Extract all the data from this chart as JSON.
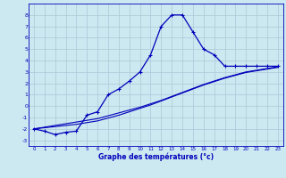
{
  "x": [
    0,
    1,
    2,
    3,
    4,
    5,
    6,
    7,
    8,
    9,
    10,
    11,
    12,
    13,
    14,
    15,
    16,
    17,
    18,
    19,
    20,
    21,
    22,
    23
  ],
  "temp_main": [
    -2.0,
    -2.2,
    -2.5,
    -2.3,
    -2.2,
    -0.8,
    -0.5,
    1.0,
    1.5,
    2.2,
    3.0,
    4.5,
    7.0,
    8.0,
    8.0,
    6.5,
    5.0,
    4.5,
    3.5,
    3.5,
    3.5,
    3.5,
    3.5,
    3.5
  ],
  "temp_line1": [
    -2.0,
    -1.85,
    -1.7,
    -1.55,
    -1.4,
    -1.25,
    -1.1,
    -0.85,
    -0.6,
    -0.35,
    -0.1,
    0.2,
    0.5,
    0.85,
    1.2,
    1.55,
    1.9,
    2.2,
    2.5,
    2.75,
    3.0,
    3.15,
    3.3,
    3.45
  ],
  "temp_line2": [
    -2.0,
    -1.9,
    -1.8,
    -1.7,
    -1.6,
    -1.45,
    -1.3,
    -1.05,
    -0.8,
    -0.5,
    -0.2,
    0.1,
    0.45,
    0.8,
    1.15,
    1.5,
    1.85,
    2.15,
    2.45,
    2.7,
    2.95,
    3.1,
    3.25,
    3.4
  ],
  "line_color": "#0000bb",
  "bg_color": "#cce8f0",
  "grid_color": "#aac8d8",
  "xlabel": "Graphe des températures (°c)",
  "ylim": [
    -3.5,
    9.0
  ],
  "xlim": [
    -0.5,
    23.5
  ],
  "yticks": [
    -3,
    -2,
    -1,
    0,
    1,
    2,
    3,
    4,
    5,
    6,
    7,
    8
  ],
  "xticks": [
    0,
    1,
    2,
    3,
    4,
    5,
    6,
    7,
    8,
    9,
    10,
    11,
    12,
    13,
    14,
    15,
    16,
    17,
    18,
    19,
    20,
    21,
    22,
    23
  ]
}
